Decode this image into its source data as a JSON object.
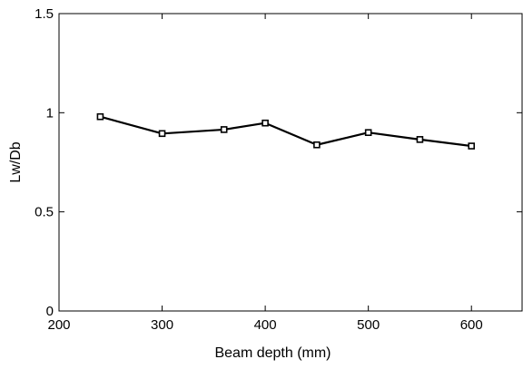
{
  "chart_data": {
    "type": "line",
    "title": "",
    "xlabel": "Beam depth (mm)",
    "ylabel": "Lw/Db",
    "xlim": [
      200,
      650
    ],
    "ylim": [
      0,
      1.5
    ],
    "x_ticks": [
      200,
      300,
      400,
      500,
      600
    ],
    "x_tick_labels": [
      "200",
      "300",
      "400",
      "500",
      "600"
    ],
    "y_ticks": [
      0,
      0.5,
      1,
      1.5
    ],
    "y_tick_labels": [
      "0",
      "0.5",
      "1",
      "1.5"
    ],
    "grid": false,
    "legend": "none",
    "series": [
      {
        "x": [
          240,
          300,
          360,
          400,
          450,
          500,
          550,
          600
        ],
        "y": [
          0.98,
          0.895,
          0.915,
          0.948,
          0.838,
          0.9,
          0.865,
          0.832
        ],
        "color": "#000000",
        "marker": "square"
      }
    ]
  }
}
